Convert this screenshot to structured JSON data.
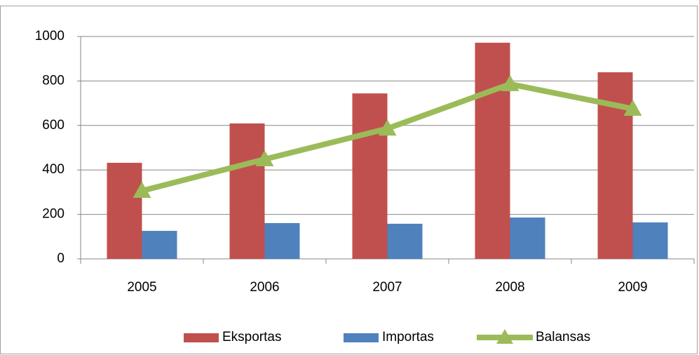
{
  "chart_data": {
    "type": "bar",
    "categories": [
      "2005",
      "2006",
      "2007",
      "2008",
      "2009"
    ],
    "series": [
      {
        "name": "Eksportas",
        "color": "#c0504d",
        "values": [
          432,
          609,
          744,
          972,
          839
        ]
      },
      {
        "name": "Importas",
        "color": "#4f81bd",
        "values": [
          126,
          161,
          158,
          186,
          164
        ]
      },
      {
        "name": "Balansas",
        "color": "#9bbb59",
        "type": "line",
        "values": [
          306,
          448,
          586,
          786,
          675
        ]
      }
    ],
    "ylim": [
      0,
      1000
    ],
    "yticks": [
      0,
      200,
      400,
      600,
      800,
      1000
    ],
    "grid": true,
    "legend": "bottom"
  }
}
